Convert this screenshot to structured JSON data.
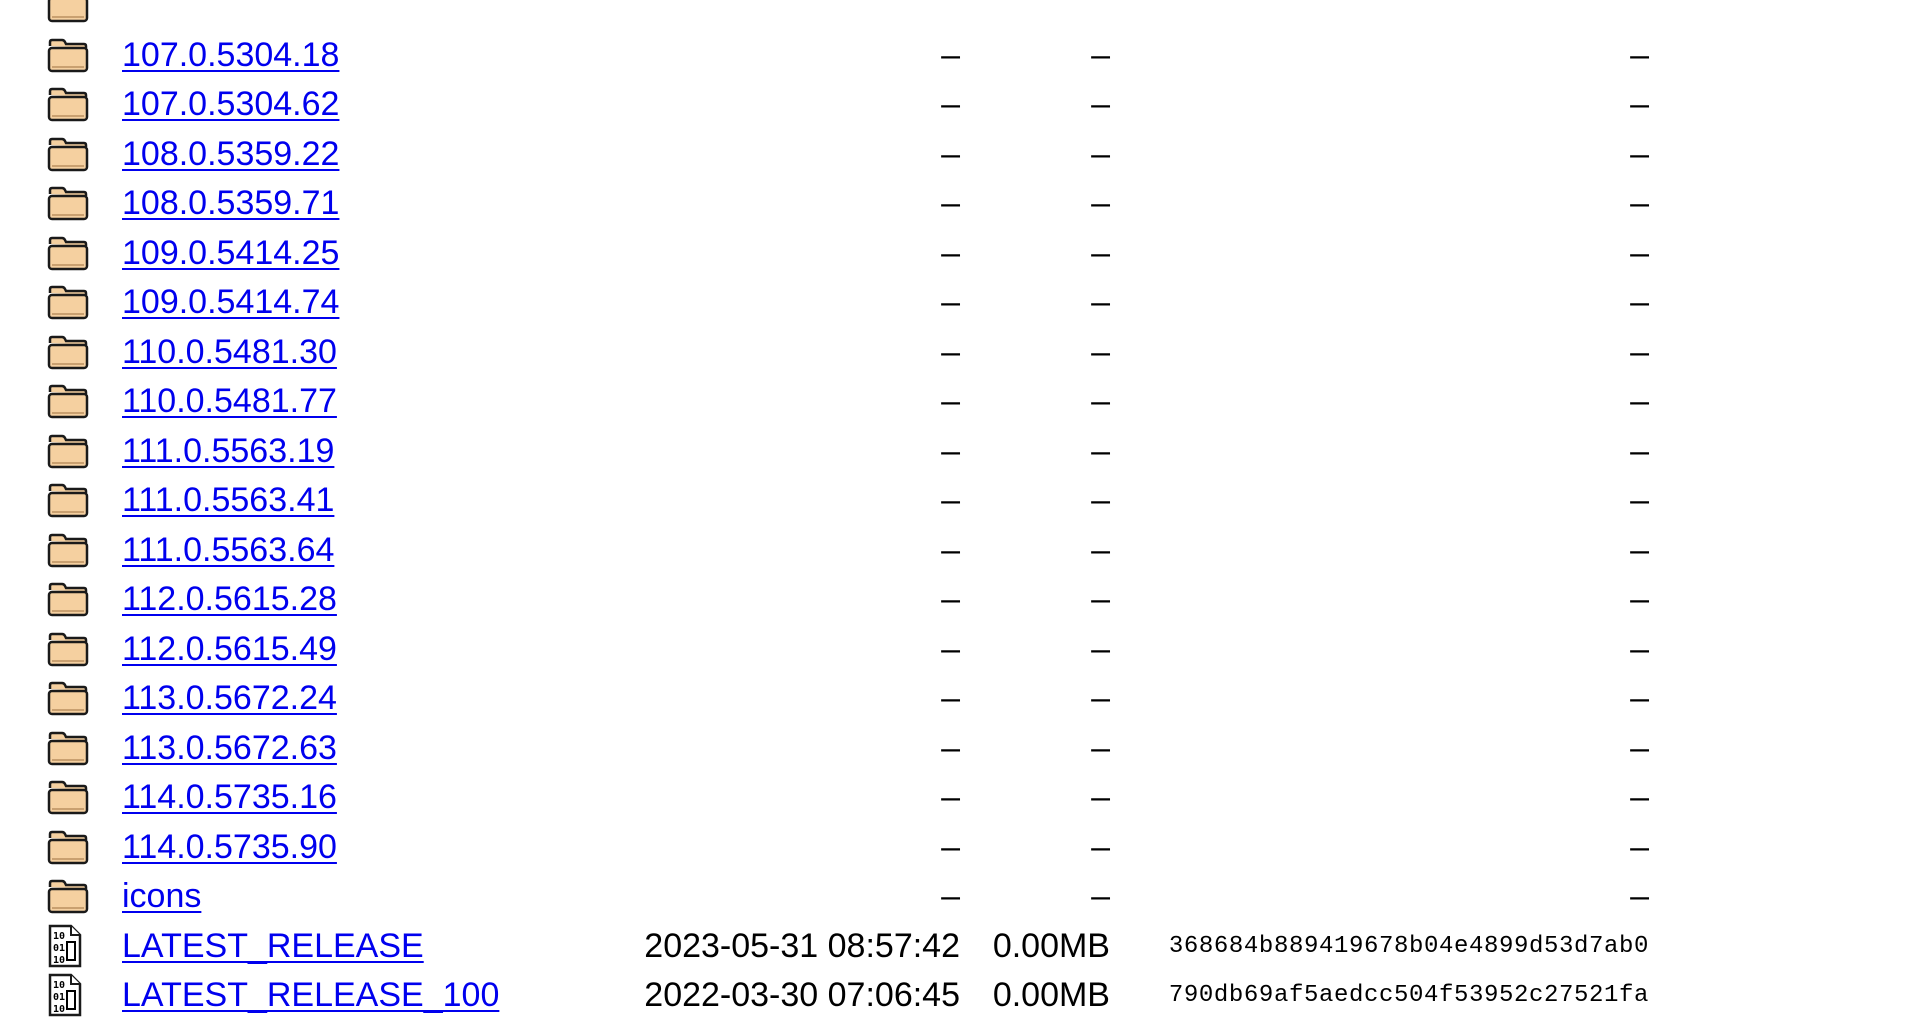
{
  "rows": [
    {
      "type": "folder",
      "name": "",
      "date": "",
      "size": "",
      "hash": ""
    },
    {
      "type": "folder",
      "name": "107.0.5304.18",
      "date": "–",
      "size": "–",
      "hash": "–"
    },
    {
      "type": "folder",
      "name": "107.0.5304.62",
      "date": "–",
      "size": "–",
      "hash": "–"
    },
    {
      "type": "folder",
      "name": "108.0.5359.22",
      "date": "–",
      "size": "–",
      "hash": "–"
    },
    {
      "type": "folder",
      "name": "108.0.5359.71",
      "date": "–",
      "size": "–",
      "hash": "–"
    },
    {
      "type": "folder",
      "name": "109.0.5414.25",
      "date": "–",
      "size": "–",
      "hash": "–"
    },
    {
      "type": "folder",
      "name": "109.0.5414.74",
      "date": "–",
      "size": "–",
      "hash": "–"
    },
    {
      "type": "folder",
      "name": "110.0.5481.30",
      "date": "–",
      "size": "–",
      "hash": "–"
    },
    {
      "type": "folder",
      "name": "110.0.5481.77",
      "date": "–",
      "size": "–",
      "hash": "–"
    },
    {
      "type": "folder",
      "name": "111.0.5563.19",
      "date": "–",
      "size": "–",
      "hash": "–"
    },
    {
      "type": "folder",
      "name": "111.0.5563.41",
      "date": "–",
      "size": "–",
      "hash": "–"
    },
    {
      "type": "folder",
      "name": "111.0.5563.64",
      "date": "–",
      "size": "–",
      "hash": "–"
    },
    {
      "type": "folder",
      "name": "112.0.5615.28",
      "date": "–",
      "size": "–",
      "hash": "–"
    },
    {
      "type": "folder",
      "name": "112.0.5615.49",
      "date": "–",
      "size": "–",
      "hash": "–"
    },
    {
      "type": "folder",
      "name": "113.0.5672.24",
      "date": "–",
      "size": "–",
      "hash": "–"
    },
    {
      "type": "folder",
      "name": "113.0.5672.63",
      "date": "–",
      "size": "–",
      "hash": "–"
    },
    {
      "type": "folder",
      "name": "114.0.5735.16",
      "date": "–",
      "size": "–",
      "hash": "–"
    },
    {
      "type": "folder",
      "name": "114.0.5735.90",
      "date": "–",
      "size": "–",
      "hash": "–"
    },
    {
      "type": "folder",
      "name": "icons",
      "date": "–",
      "size": "–",
      "hash": "–"
    },
    {
      "type": "file",
      "name": "LATEST_RELEASE",
      "date": "2023-05-31 08:57:42",
      "size": "0.00MB",
      "hash": "368684b889419678b04e4899d53d7ab0"
    },
    {
      "type": "file",
      "name": "LATEST_RELEASE_100",
      "date": "2022-03-30 07:06:45",
      "size": "0.00MB",
      "hash": "790db69af5aedcc504f53952c27521fa"
    }
  ],
  "icons": {
    "folder": "folder-icon",
    "file": "binary-file-icon"
  },
  "colors": {
    "link": "#0000ee",
    "folder_fill": "#f5d0a0",
    "folder_stroke": "#1a1a1a"
  }
}
